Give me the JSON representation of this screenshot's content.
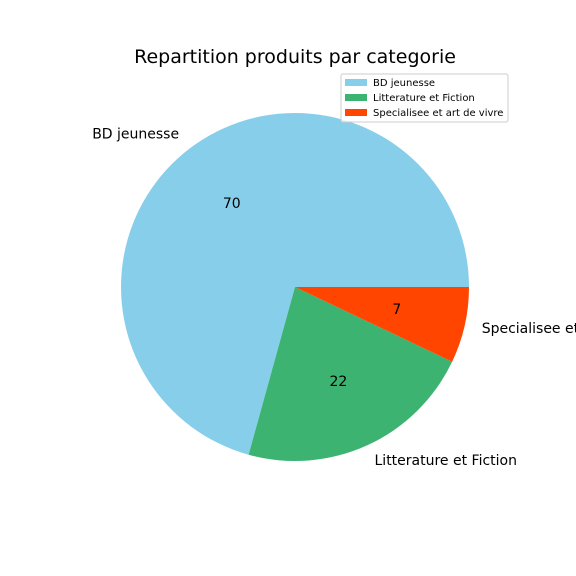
{
  "chart_data": {
    "type": "pie",
    "title": "Repartition produits par categorie",
    "categories": [
      "BD jeunesse",
      "Litterature et Fiction",
      "Specialisee et art de vivre"
    ],
    "values": [
      70,
      22,
      7
    ],
    "value_labels": [
      "70",
      "22",
      "7"
    ],
    "colors": [
      "#87CEEB",
      "#3CB371",
      "#FF4500"
    ],
    "legend": {
      "placement": "top-right",
      "entries": [
        "BD jeunesse",
        "Litterature et Fiction",
        "Specialisee et art de vivre"
      ]
    }
  }
}
